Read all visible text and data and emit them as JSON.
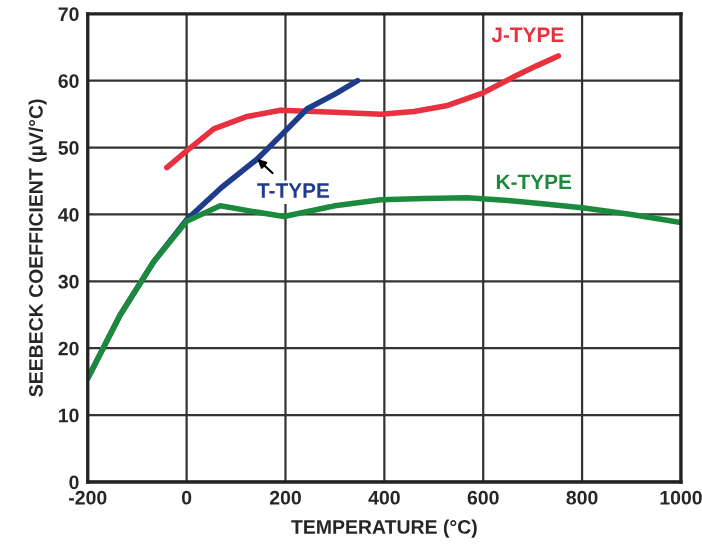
{
  "chart_data": {
    "type": "line",
    "xlabel": "TEMPERATURE (°C)",
    "ylabel": "SEEBECK COEFFICIENT (µV/°C)",
    "xlim": [
      -200,
      1000
    ],
    "ylim": [
      0,
      70
    ],
    "xticks": [
      -200,
      0,
      200,
      400,
      600,
      800,
      1000
    ],
    "yticks": [
      0,
      10,
      20,
      30,
      40,
      50,
      60,
      70
    ],
    "grid": true,
    "series": [
      {
        "color": "#e8303f",
        "x": [
          -40,
          0,
          55,
          120,
          190,
          300,
          393,
          460,
          528,
          600,
          665,
          710,
          752
        ],
        "values": [
          47,
          49.5,
          52.8,
          54.6,
          55.6,
          55.3,
          55,
          55.4,
          56.3,
          58.2,
          60.7,
          62.3,
          63.7
        ]
      },
      {
        "color": "#1f3c8c",
        "x": [
          -200,
          -135,
          -67,
          0,
          70,
          143,
          200,
          244,
          300,
          346
        ],
        "values": [
          15.5,
          24.9,
          32.9,
          39.2,
          44,
          48.3,
          52.5,
          55.8,
          58,
          60
        ]
      },
      {
        "color": "#1c8a3c",
        "x": [
          -200,
          -135,
          -67,
          0,
          68,
          130,
          197,
          300,
          393,
          480,
          568,
          650,
          720,
          800,
          900,
          1000
        ],
        "values": [
          15.5,
          24.9,
          32.9,
          39,
          41.3,
          40.5,
          39.7,
          41.3,
          42.2,
          42.4,
          42.5,
          42.1,
          41.6,
          41,
          40,
          38.8
        ]
      }
    ],
    "annotations": [
      "J-TYPE",
      {
        "text": "T-TYPE",
        "x": 143,
        "y": 48.3
      },
      "K-TYPE"
    ]
  }
}
